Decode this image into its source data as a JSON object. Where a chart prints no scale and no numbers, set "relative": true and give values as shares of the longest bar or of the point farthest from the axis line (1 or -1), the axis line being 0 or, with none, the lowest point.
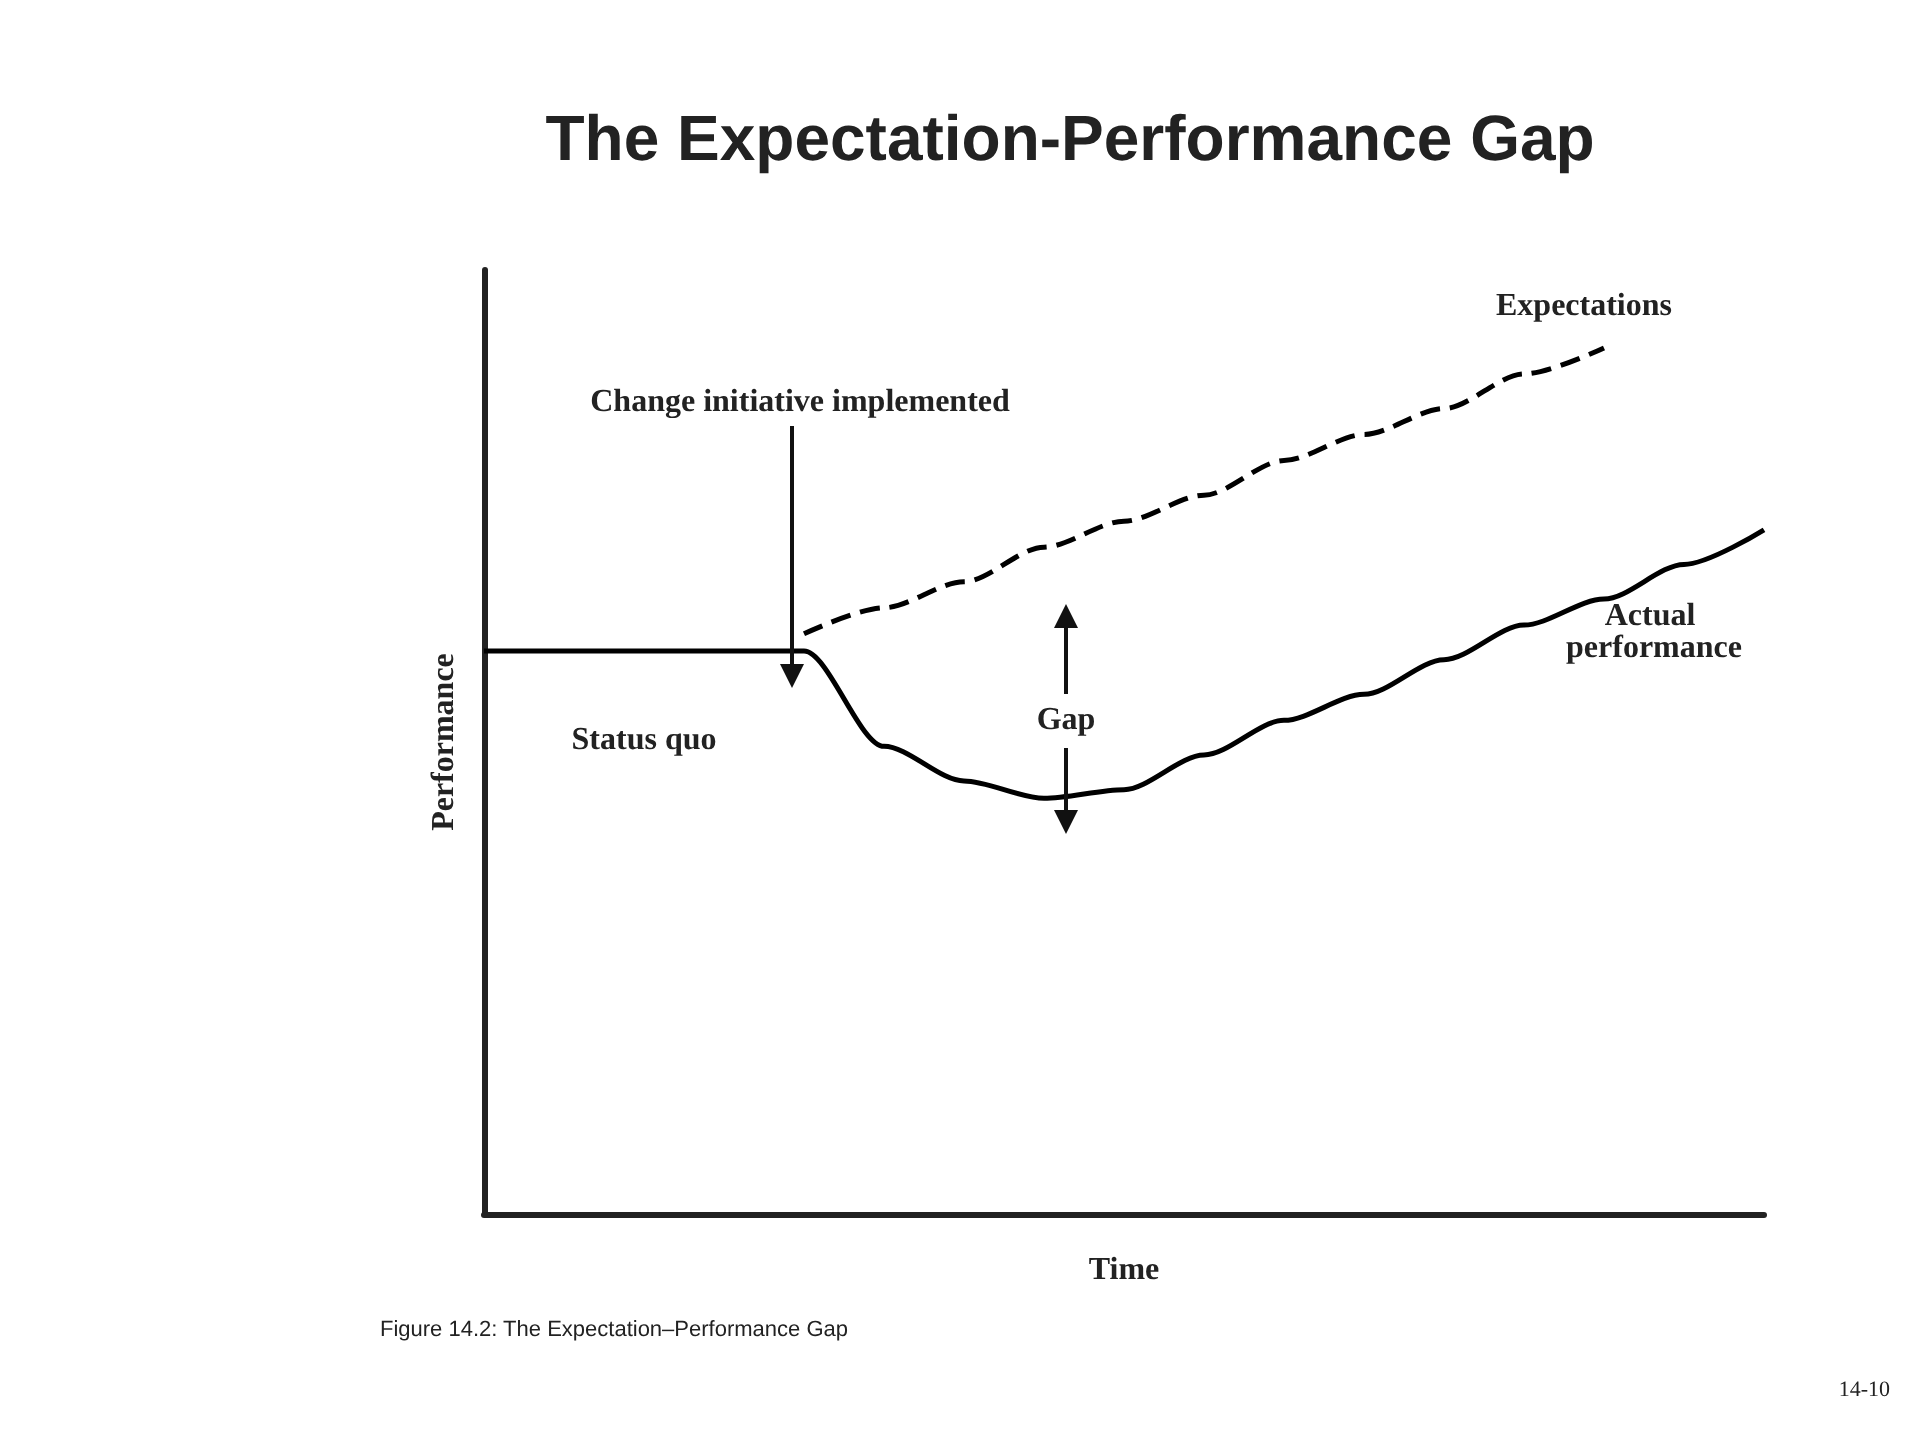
{
  "chart_data": {
    "type": "line",
    "title": "The Expectation-Performance Gap",
    "xlabel": "Time",
    "ylabel": "Performance",
    "relative": true,
    "legend": false,
    "grid": false,
    "marker": "none",
    "categories": [
      null,
      null,
      null,
      null,
      null,
      null,
      null,
      null,
      null,
      null,
      null,
      null,
      null,
      null,
      null,
      null,
      null
    ],
    "series": [
      {
        "name": "Actual performance",
        "color": "#000000",
        "line_style": "solid",
        "values": [
          0.65,
          0.65,
          0.65,
          0.65,
          0.65,
          0.54,
          0.5,
          0.48,
          0.49,
          0.53,
          0.57,
          0.6,
          0.64,
          0.68,
          0.71,
          0.75,
          0.79
        ]
      },
      {
        "name": "Expectations",
        "color": "#000000",
        "line_style": "dashed",
        "values": [
          null,
          null,
          null,
          null,
          0.67,
          0.7,
          0.73,
          0.77,
          0.8,
          0.83,
          0.87,
          0.9,
          0.93,
          0.97,
          1.0,
          null,
          null
        ]
      }
    ],
    "annotations": [
      "Change initiative implemented",
      "Status quo",
      "Gap",
      "Figure 14.2: The Expectation–Performance Gap",
      "14-10"
    ]
  }
}
